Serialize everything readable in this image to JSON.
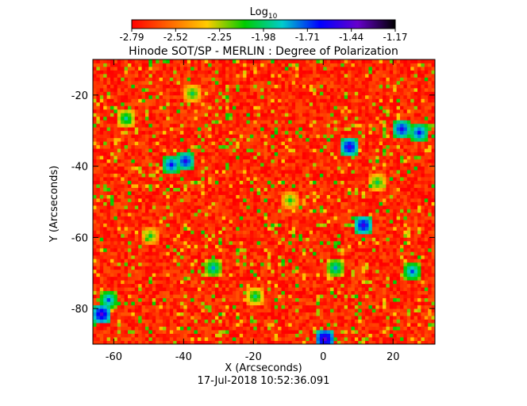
{
  "chart_data": {
    "type": "heatmap",
    "title": "Hinode SOT/SP - MERLIN : Degree of Polarization",
    "xlabel": "X (Arcseconds)",
    "ylabel": "Y (Arcseconds)",
    "timestamp": "17-Jul-2018 10:52:36.091",
    "xlim": [
      -66,
      32
    ],
    "ylim": [
      -90,
      -10
    ],
    "x_ticks": [
      -60,
      -40,
      -20,
      0,
      20
    ],
    "y_ticks": [
      -80,
      -60,
      -40,
      -20
    ],
    "x_tick_labels": [
      "-60",
      "-40",
      "-20",
      "0",
      "20"
    ],
    "y_tick_labels": [
      "-80",
      "-60",
      "-40",
      "-20"
    ],
    "colorbar": {
      "label_base": "Log",
      "label_sub": "10",
      "scale": "log10",
      "range": [
        -2.79,
        -1.17
      ],
      "tick_values": [
        -2.79,
        -2.52,
        -2.25,
        -1.98,
        -1.71,
        -1.44,
        -1.17
      ],
      "tick_labels": [
        "-2.79",
        "-2.52",
        "-2.25",
        "-1.98",
        "-1.71",
        "-1.44",
        "-1.17"
      ],
      "colormap_stops": [
        "#ff0000",
        "#ff6600",
        "#ffcc00",
        "#00cc00",
        "#00cccc",
        "#0000ff",
        "#6600cc",
        "#000000"
      ]
    },
    "dominant_level": -2.7,
    "features": [
      {
        "x": -64,
        "y": -82,
        "level": -1.45
      },
      {
        "x": -62,
        "y": -78,
        "level": -1.7
      },
      {
        "x": 0,
        "y": -89,
        "level": -1.4
      },
      {
        "x": -44,
        "y": -40,
        "level": -1.6
      },
      {
        "x": -40,
        "y": -39,
        "level": -1.55
      },
      {
        "x": 7,
        "y": -35,
        "level": -1.5
      },
      {
        "x": 11,
        "y": -57,
        "level": -1.5
      },
      {
        "x": 22,
        "y": -30,
        "level": -1.55
      },
      {
        "x": 27,
        "y": -31,
        "level": -1.6
      },
      {
        "x": 25,
        "y": -70,
        "level": -1.7
      },
      {
        "x": -57,
        "y": -27,
        "level": -1.9
      },
      {
        "x": 3,
        "y": -69,
        "level": -1.8
      },
      {
        "x": -32,
        "y": -69,
        "level": -1.8
      },
      {
        "x": -20,
        "y": -77,
        "level": -1.95
      },
      {
        "x": -38,
        "y": -20,
        "level": -2.0
      },
      {
        "x": -10,
        "y": -50,
        "level": -2.05
      },
      {
        "x": 15,
        "y": -45,
        "level": -2.0
      },
      {
        "x": -50,
        "y": -60,
        "level": -2.05
      }
    ]
  }
}
